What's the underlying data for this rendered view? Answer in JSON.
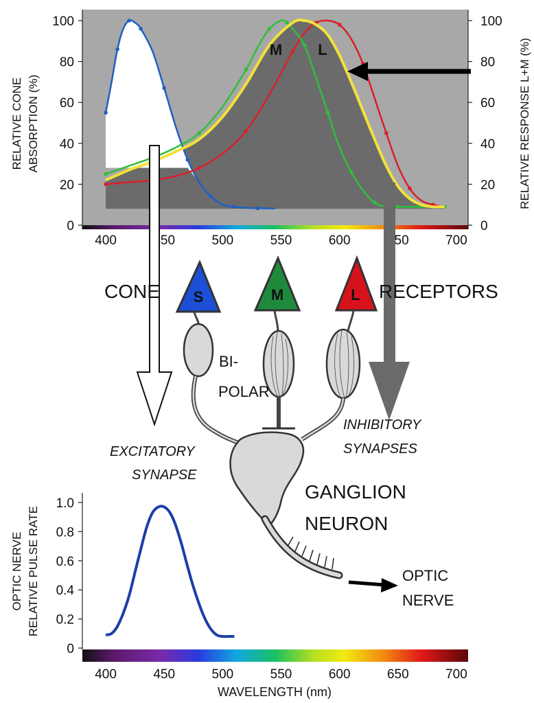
{
  "colors": {
    "plot_bg": "#a8a8a8",
    "dark_fill": "#6b6b6b",
    "s_cone": "#1f5fc4",
    "m_cone": "#2fbf3a",
    "l_cone": "#d8202a",
    "lm_sum": "#f2e23a",
    "pulse_curve": "#1c3fa6",
    "s_triangle": "#1c4fd6",
    "m_triangle": "#1f8a3c",
    "l_triangle": "#d8121c",
    "neuron": "#d9d9d9",
    "gray_arrow": "#6a6a6a"
  },
  "top_chart": {
    "ylabel_left": [
      "RELATIVE CONE",
      "ABSORPTION  (%)"
    ],
    "ylabel_right": "RELATIVE RESPONSE L+M  (%)",
    "curve_label_m": "M",
    "curve_label_l": "L",
    "x_ticks": [
      "400",
      "450",
      "500",
      "550",
      "600",
      "650",
      "700"
    ],
    "y_ticks": [
      "0",
      "20",
      "40",
      "60",
      "80",
      "100"
    ]
  },
  "bottom_chart": {
    "ylabel": [
      "OPTIC NERVE",
      "RELATIVE PULSE RATE"
    ],
    "xlabel": "WAVELENGTH  (nm)",
    "x_ticks": [
      "400",
      "450",
      "500",
      "550",
      "600",
      "650",
      "700"
    ],
    "y_ticks": [
      "0",
      "0.2",
      "0.4",
      "0.6",
      "0.8",
      "1.0"
    ]
  },
  "diagram": {
    "label_cone": "CONE",
    "label_receptors": "RECEPTORS",
    "cone_s": "S",
    "cone_m": "M",
    "cone_l": "L",
    "bipolar_1": "BI-",
    "bipolar_2": "POLAR",
    "excitatory_1": "EXCITATORY",
    "excitatory_2": "SYNAPSE",
    "inhibitory_1": "INHIBITORY",
    "inhibitory_2": "SYNAPSES",
    "ganglion_1": "GANGLION",
    "ganglion_2": "NEURON",
    "optic_1": "OPTIC",
    "optic_2": "NERVE"
  },
  "chart_data": [
    {
      "type": "line",
      "xlabel": "",
      "ylabel": "RELATIVE CONE ABSORPTION (%)",
      "y2label": "RELATIVE RESPONSE L+M (%)",
      "xlim": [
        380,
        710
      ],
      "ylim": [
        0,
        100
      ],
      "series": [
        {
          "name": "S",
          "color": "s_cone",
          "x": [
            400,
            405,
            410,
            415,
            420,
            425,
            430,
            440,
            450,
            460,
            470,
            480,
            490,
            500,
            510,
            520,
            530,
            545
          ],
          "y": [
            55,
            70,
            86,
            96,
            100,
            99,
            96,
            85,
            67,
            48,
            32,
            21,
            14,
            10,
            9,
            8.5,
            8.3,
            8.2
          ]
        },
        {
          "name": "M",
          "color": "m_cone",
          "x": [
            400,
            420,
            440,
            460,
            480,
            500,
            520,
            530,
            540,
            550,
            555,
            560,
            570,
            580,
            590,
            600,
            610,
            620,
            630,
            640,
            650,
            660,
            670,
            680,
            690
          ],
          "y": [
            25,
            29,
            33,
            38,
            45,
            58,
            76,
            87,
            96,
            100,
            99,
            96,
            88,
            72,
            55,
            38,
            26,
            17,
            11,
            9,
            9,
            9,
            9,
            9,
            9
          ]
        },
        {
          "name": "L",
          "color": "l_cone",
          "x": [
            400,
            420,
            440,
            460,
            480,
            500,
            520,
            540,
            560,
            570,
            580,
            590,
            600,
            610,
            620,
            630,
            640,
            650,
            660,
            670,
            680,
            690
          ],
          "y": [
            20,
            21,
            22,
            24,
            28,
            35,
            46,
            64,
            85,
            94,
            99,
            100,
            98,
            91,
            79,
            62,
            45,
            29,
            18,
            12,
            10,
            9
          ]
        },
        {
          "name": "L+M",
          "color": "lm_sum",
          "x": [
            400,
            420,
            440,
            460,
            480,
            500,
            520,
            540,
            560,
            570,
            580,
            590,
            600,
            610,
            620,
            630,
            640,
            650,
            660,
            670,
            680,
            690
          ],
          "y": [
            22,
            27,
            31,
            36,
            42,
            53,
            69,
            88,
            99,
            100,
            98,
            93,
            83,
            70,
            56,
            42,
            29,
            19,
            13,
            10,
            9,
            9
          ]
        }
      ]
    },
    {
      "type": "line",
      "xlabel": "WAVELENGTH  (nm)",
      "ylabel": "OPTIC NERVE RELATIVE PULSE RATE",
      "xlim": [
        380,
        710
      ],
      "ylim": [
        0,
        1.0
      ],
      "series": [
        {
          "color": "pulse_curve",
          "x": [
            400,
            405,
            410,
            415,
            420,
            425,
            430,
            435,
            440,
            445,
            450,
            455,
            460,
            465,
            470,
            475,
            480,
            485,
            490,
            495,
            500,
            505,
            510
          ],
          "y": [
            0.09,
            0.1,
            0.15,
            0.24,
            0.36,
            0.52,
            0.68,
            0.83,
            0.93,
            0.97,
            0.97,
            0.93,
            0.84,
            0.71,
            0.56,
            0.42,
            0.3,
            0.2,
            0.13,
            0.09,
            0.08,
            0.08,
            0.08
          ]
        }
      ]
    }
  ]
}
